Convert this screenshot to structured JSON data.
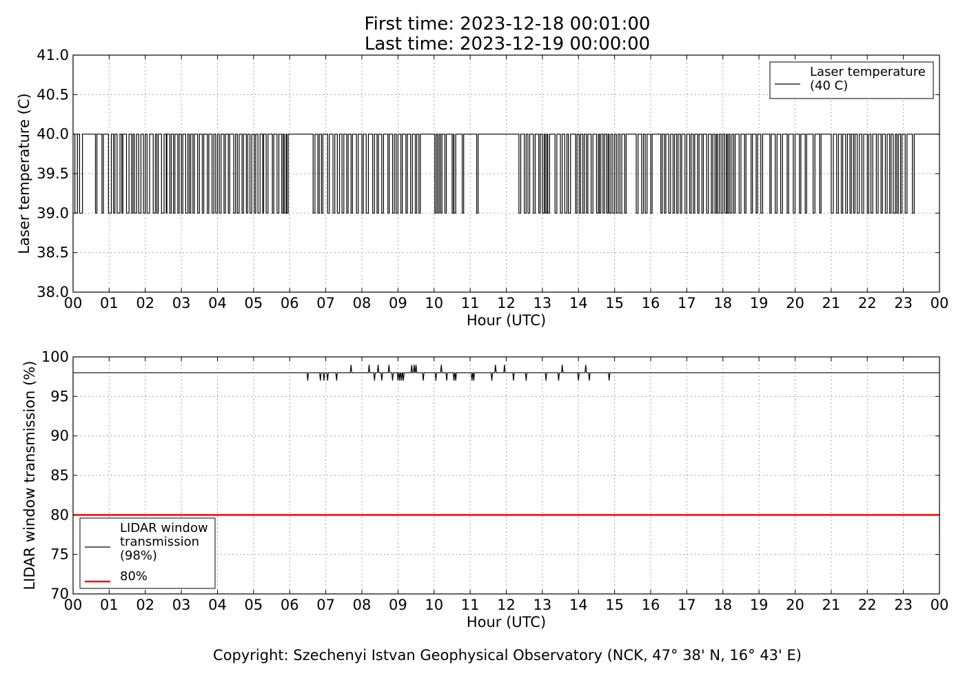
{
  "header": {
    "title_line1": "First time: 2023-12-18 00:01:00",
    "title_line2": "Last time: 2023-12-19 00:00:00"
  },
  "footer": {
    "copyright": "Copyright: Szechenyi Istvan Geophysical Observatory (NCK, 47° 38' N, 16° 43' E)"
  },
  "chart_data": [
    {
      "type": "line",
      "xlabel": "Hour (UTC)",
      "ylabel": "Laser temperature (C)",
      "xlim": [
        0,
        24
      ],
      "ylim": [
        38.0,
        41.0
      ],
      "x_tick_labels": [
        "00",
        "01",
        "02",
        "03",
        "04",
        "05",
        "06",
        "07",
        "08",
        "09",
        "10",
        "11",
        "12",
        "13",
        "14",
        "15",
        "16",
        "17",
        "18",
        "19",
        "20",
        "21",
        "22",
        "23",
        "00"
      ],
      "y_ticks": [
        "38.0",
        "38.5",
        "39.0",
        "39.5",
        "40.0",
        "40.5",
        "41.0"
      ],
      "grid": true,
      "legend_position": "top-right",
      "series": [
        {
          "name": "Laser temperature\n(40 C)",
          "color": "#000000",
          "baseline": 40.0,
          "dip_value": 39.0,
          "dips_hours": [
            [
              0.05,
              0.12
            ],
            [
              0.18,
              0.26
            ],
            [
              0.62,
              0.66
            ],
            [
              0.8,
              0.84
            ],
            [
              0.98,
              1.06
            ],
            [
              1.12,
              1.16
            ],
            [
              1.22,
              1.3
            ],
            [
              1.35,
              1.38
            ],
            [
              1.48,
              1.55
            ],
            [
              1.62,
              1.66
            ],
            [
              1.7,
              1.76
            ],
            [
              1.82,
              1.88
            ],
            [
              1.95,
              2.0
            ],
            [
              2.05,
              2.12
            ],
            [
              2.22,
              2.28
            ],
            [
              2.32,
              2.36
            ],
            [
              2.45,
              2.52
            ],
            [
              2.58,
              2.6
            ],
            [
              2.68,
              2.72
            ],
            [
              2.78,
              2.82
            ],
            [
              2.9,
              2.94
            ],
            [
              3.0,
              3.04
            ],
            [
              3.12,
              3.18
            ],
            [
              3.22,
              3.26
            ],
            [
              3.32,
              3.36
            ],
            [
              3.45,
              3.5
            ],
            [
              3.58,
              3.62
            ],
            [
              3.72,
              3.76
            ],
            [
              3.85,
              3.9
            ],
            [
              3.95,
              4.0
            ],
            [
              4.05,
              4.1
            ],
            [
              4.18,
              4.22
            ],
            [
              4.3,
              4.34
            ],
            [
              4.45,
              4.5
            ],
            [
              4.55,
              4.6
            ],
            [
              4.68,
              4.72
            ],
            [
              4.8,
              4.84
            ],
            [
              4.9,
              4.95
            ],
            [
              5.02,
              5.06
            ],
            [
              5.12,
              5.18
            ],
            [
              5.25,
              5.28
            ],
            [
              5.35,
              5.4
            ],
            [
              5.52,
              5.56
            ],
            [
              5.65,
              5.7
            ],
            [
              5.78,
              5.82
            ],
            [
              5.85,
              5.9
            ],
            [
              5.92,
              5.96
            ],
            [
              6.65,
              6.7
            ],
            [
              6.78,
              6.82
            ],
            [
              6.88,
              6.92
            ],
            [
              7.05,
              7.1
            ],
            [
              7.2,
              7.25
            ],
            [
              7.32,
              7.38
            ],
            [
              7.45,
              7.5
            ],
            [
              7.58,
              7.62
            ],
            [
              7.7,
              7.74
            ],
            [
              7.85,
              7.9
            ],
            [
              8.0,
              8.04
            ],
            [
              8.12,
              8.18
            ],
            [
              8.3,
              8.35
            ],
            [
              8.42,
              8.46
            ],
            [
              8.55,
              8.6
            ],
            [
              8.72,
              8.76
            ],
            [
              8.85,
              8.9
            ],
            [
              8.95,
              9.0
            ],
            [
              9.08,
              9.12
            ],
            [
              9.22,
              9.26
            ],
            [
              9.35,
              9.4
            ],
            [
              9.48,
              9.52
            ],
            [
              9.58,
              9.62
            ],
            [
              10.02,
              10.06
            ],
            [
              10.1,
              10.14
            ],
            [
              10.18,
              10.22
            ],
            [
              10.3,
              10.34
            ],
            [
              10.5,
              10.54
            ],
            [
              10.55,
              10.6
            ],
            [
              10.78,
              10.82
            ],
            [
              11.18,
              11.22
            ],
            [
              12.35,
              12.4
            ],
            [
              12.5,
              12.55
            ],
            [
              12.6,
              12.65
            ],
            [
              12.75,
              12.8
            ],
            [
              12.9,
              12.94
            ],
            [
              13.0,
              13.05
            ],
            [
              13.08,
              13.12
            ],
            [
              13.15,
              13.2
            ],
            [
              13.35,
              13.4
            ],
            [
              13.5,
              13.55
            ],
            [
              13.62,
              13.68
            ],
            [
              13.72,
              13.78
            ],
            [
              13.92,
              13.96
            ],
            [
              14.02,
              14.06
            ],
            [
              14.12,
              14.16
            ],
            [
              14.22,
              14.26
            ],
            [
              14.35,
              14.4
            ],
            [
              14.5,
              14.55
            ],
            [
              14.58,
              14.62
            ],
            [
              14.68,
              14.72
            ],
            [
              14.78,
              14.82
            ],
            [
              14.85,
              14.9
            ],
            [
              14.95,
              15.0
            ],
            [
              15.05,
              15.1
            ],
            [
              15.15,
              15.2
            ],
            [
              15.28,
              15.32
            ],
            [
              15.6,
              15.65
            ],
            [
              15.75,
              15.8
            ],
            [
              15.85,
              15.9
            ],
            [
              16.0,
              16.04
            ],
            [
              16.28,
              16.32
            ],
            [
              16.38,
              16.42
            ],
            [
              16.5,
              16.55
            ],
            [
              16.62,
              16.66
            ],
            [
              16.72,
              16.76
            ],
            [
              16.82,
              16.86
            ],
            [
              16.95,
              17.0
            ],
            [
              17.08,
              17.12
            ],
            [
              17.18,
              17.22
            ],
            [
              17.3,
              17.34
            ],
            [
              17.42,
              17.46
            ],
            [
              17.55,
              17.6
            ],
            [
              17.68,
              17.72
            ],
            [
              17.78,
              17.82
            ],
            [
              17.85,
              17.9
            ],
            [
              17.95,
              18.0
            ],
            [
              18.05,
              18.1
            ],
            [
              18.12,
              18.16
            ],
            [
              18.2,
              18.25
            ],
            [
              18.3,
              18.34
            ],
            [
              18.45,
              18.5
            ],
            [
              18.6,
              18.64
            ],
            [
              18.78,
              18.82
            ],
            [
              18.92,
              18.96
            ],
            [
              19.05,
              19.1
            ],
            [
              19.3,
              19.34
            ],
            [
              19.45,
              19.5
            ],
            [
              19.6,
              19.65
            ],
            [
              19.78,
              19.82
            ],
            [
              19.95,
              20.0
            ],
            [
              20.12,
              20.16
            ],
            [
              20.28,
              20.32
            ],
            [
              20.5,
              20.55
            ],
            [
              20.68,
              20.72
            ],
            [
              21.0,
              21.06
            ],
            [
              21.15,
              21.2
            ],
            [
              21.28,
              21.32
            ],
            [
              21.4,
              21.45
            ],
            [
              21.52,
              21.56
            ],
            [
              21.62,
              21.66
            ],
            [
              21.72,
              21.78
            ],
            [
              21.85,
              21.9
            ],
            [
              22.0,
              22.04
            ],
            [
              22.1,
              22.15
            ],
            [
              22.25,
              22.3
            ],
            [
              22.38,
              22.42
            ],
            [
              22.5,
              22.55
            ],
            [
              22.62,
              22.66
            ],
            [
              22.72,
              22.78
            ],
            [
              22.82,
              22.86
            ],
            [
              22.92,
              22.96
            ],
            [
              23.05,
              23.1
            ],
            [
              23.25,
              23.3
            ]
          ]
        }
      ]
    },
    {
      "type": "line",
      "xlabel": "Hour (UTC)",
      "ylabel": "LIDAR window transmission (%)",
      "xlim": [
        0,
        24
      ],
      "ylim": [
        70,
        100
      ],
      "x_tick_labels": [
        "00",
        "01",
        "02",
        "03",
        "04",
        "05",
        "06",
        "07",
        "08",
        "09",
        "10",
        "11",
        "12",
        "13",
        "14",
        "15",
        "16",
        "17",
        "18",
        "19",
        "20",
        "21",
        "22",
        "23",
        "00"
      ],
      "y_ticks": [
        "70",
        "75",
        "80",
        "85",
        "90",
        "95",
        "100"
      ],
      "grid": true,
      "legend_position": "lower-left",
      "series": [
        {
          "name": "LIDAR window\ntransmission\n(98%)",
          "color": "#000000",
          "baseline": 98,
          "excursions": [
            [
              6.5,
              97
            ],
            [
              6.85,
              97
            ],
            [
              6.95,
              97
            ],
            [
              7.05,
              97
            ],
            [
              7.3,
              97
            ],
            [
              7.7,
              99
            ],
            [
              8.2,
              99
            ],
            [
              8.35,
              97
            ],
            [
              8.45,
              99
            ],
            [
              8.55,
              97
            ],
            [
              8.75,
              99
            ],
            [
              8.85,
              97
            ],
            [
              9.0,
              97
            ],
            [
              9.05,
              97
            ],
            [
              9.1,
              97
            ],
            [
              9.15,
              97
            ],
            [
              9.38,
              99
            ],
            [
              9.45,
              99
            ],
            [
              9.5,
              99
            ],
            [
              9.7,
              97
            ],
            [
              10.05,
              97
            ],
            [
              10.2,
              99
            ],
            [
              10.35,
              97
            ],
            [
              10.55,
              97
            ],
            [
              10.6,
              97
            ],
            [
              11.05,
              97
            ],
            [
              11.1,
              97
            ],
            [
              11.6,
              97
            ],
            [
              11.7,
              99
            ],
            [
              11.95,
              99
            ],
            [
              12.2,
              97
            ],
            [
              12.55,
              97
            ],
            [
              13.1,
              97
            ],
            [
              13.45,
              97
            ],
            [
              13.55,
              99
            ],
            [
              14.0,
              97
            ],
            [
              14.2,
              99
            ],
            [
              14.3,
              97
            ],
            [
              14.85,
              97
            ]
          ]
        },
        {
          "name": "80%",
          "color": "#ff0000",
          "value": 80
        }
      ]
    }
  ]
}
